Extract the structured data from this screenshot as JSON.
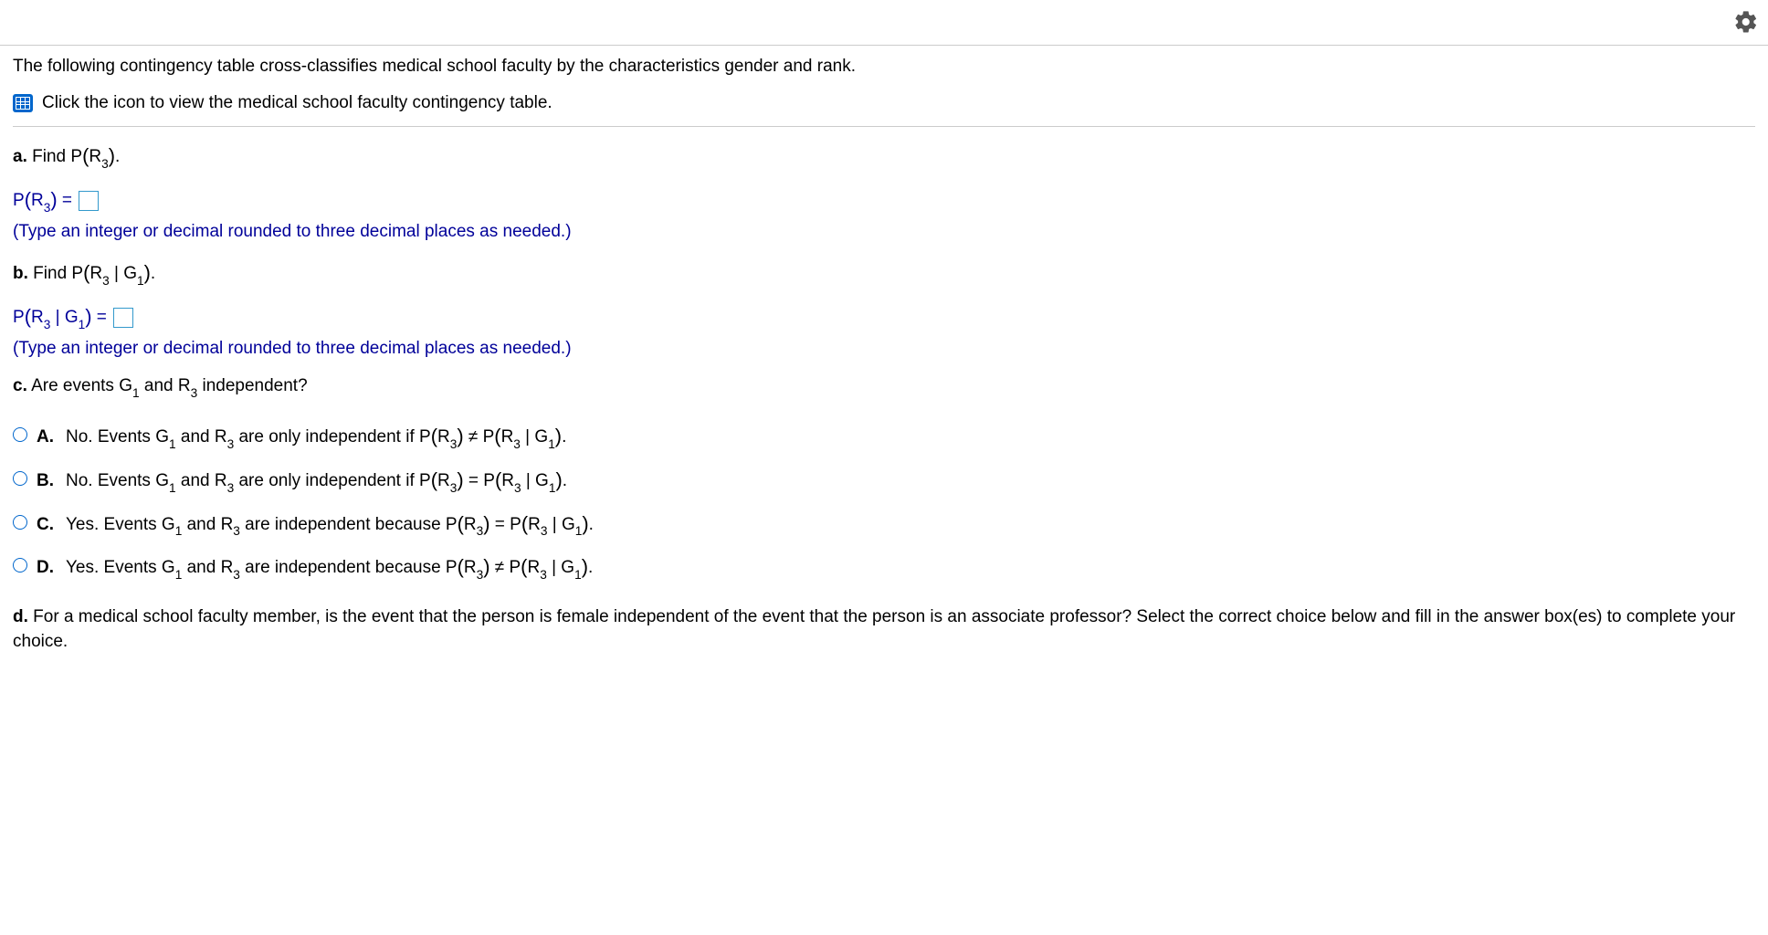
{
  "intro": "The following contingency table cross-classifies medical school faculty by the characteristics gender and rank.",
  "iconText": "Click the icon to view the medical school faculty contingency table.",
  "partA": {
    "label": "a.",
    "prompt_prefix": " Find P",
    "expr_inner": "R",
    "expr_sub": "3",
    "answer_prefix": "P",
    "answer_inner": "R",
    "answer_sub": "3",
    "equals": " = ",
    "hint": "(Type an integer or decimal rounded to three decimal places as needed.)"
  },
  "partB": {
    "label": "b.",
    "prompt_prefix": " Find P",
    "expr_a": "R",
    "expr_a_sub": "3",
    "bar": " | ",
    "expr_b": "G",
    "expr_b_sub": "1",
    "answer_prefix": "P",
    "equals": " = ",
    "hint": "(Type an integer or decimal rounded to three decimal places as needed.)"
  },
  "partC": {
    "label": "c.",
    "prompt": " Are events G",
    "g_sub": "1",
    "and": " and R",
    "r_sub": "3",
    "suffix": " independent?"
  },
  "choices": [
    {
      "letter": "A.",
      "text_pre": "No. Events G",
      "g_sub": "1",
      "and": " and R",
      "r_sub": "3",
      "mid": " are only independent if P",
      "p1_inner": "R",
      "p1_sub": "3",
      "op": " ≠ P",
      "p2_a": "R",
      "p2_a_sub": "3",
      "p2_bar": " | ",
      "p2_b": "G",
      "p2_b_sub": "1",
      "end": "."
    },
    {
      "letter": "B.",
      "text_pre": "No. Events G",
      "g_sub": "1",
      "and": " and R",
      "r_sub": "3",
      "mid": " are only independent if P",
      "p1_inner": "R",
      "p1_sub": "3",
      "op": " = P",
      "p2_a": "R",
      "p2_a_sub": "3",
      "p2_bar": " | ",
      "p2_b": "G",
      "p2_b_sub": "1",
      "end": "."
    },
    {
      "letter": "C.",
      "text_pre": "Yes. Events G",
      "g_sub": "1",
      "and": " and R",
      "r_sub": "3",
      "mid": " are independent because P",
      "p1_inner": "R",
      "p1_sub": "3",
      "op": " = P",
      "p2_a": "R",
      "p2_a_sub": "3",
      "p2_bar": " | ",
      "p2_b": "G",
      "p2_b_sub": "1",
      "end": "."
    },
    {
      "letter": "D.",
      "text_pre": "Yes. Events G",
      "g_sub": "1",
      "and": " and R",
      "r_sub": "3",
      "mid": " are independent because P",
      "p1_inner": "R",
      "p1_sub": "3",
      "op": " ≠ P",
      "p2_a": "R",
      "p2_a_sub": "3",
      "p2_bar": " | ",
      "p2_b": "G",
      "p2_b_sub": "1",
      "end": "."
    }
  ],
  "partD": {
    "label": "d.",
    "text": " For a medical school faculty member, is the event that the person is female independent of the event that the person is an associate professor? Select the correct choice below and fill in the answer box(es) to complete your choice."
  },
  "parens": {
    "open": "(",
    "close": ")"
  }
}
